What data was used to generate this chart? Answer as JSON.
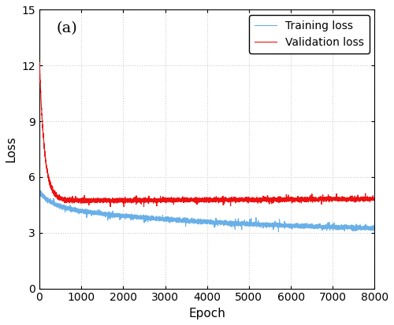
{
  "annotation": "(a)",
  "xlabel": "Epoch",
  "ylabel": "Loss",
  "xlim": [
    0,
    8000
  ],
  "ylim": [
    0,
    15
  ],
  "yticks": [
    0,
    3,
    6,
    9,
    12,
    15
  ],
  "xticks": [
    0,
    1000,
    2000,
    3000,
    4000,
    5000,
    6000,
    7000,
    8000
  ],
  "n_epochs": 8000,
  "train_color": "#6ab0e8",
  "val_color": "#ee1111",
  "train_start": 5.2,
  "train_plateau_early": 4.25,
  "train_end": 3.07,
  "val_start": 12.3,
  "val_plateau": 4.72,
  "val_end": 4.82,
  "legend_labels": [
    "Training loss",
    "Validation loss"
  ],
  "grid_color": "#cccccc",
  "background_color": "#ffffff",
  "font_size": 11,
  "line_width": 0.8,
  "noise_train_std": 0.055,
  "noise_val_std": 0.055,
  "figsize": [
    5.0,
    4.13
  ],
  "dpi": 100
}
